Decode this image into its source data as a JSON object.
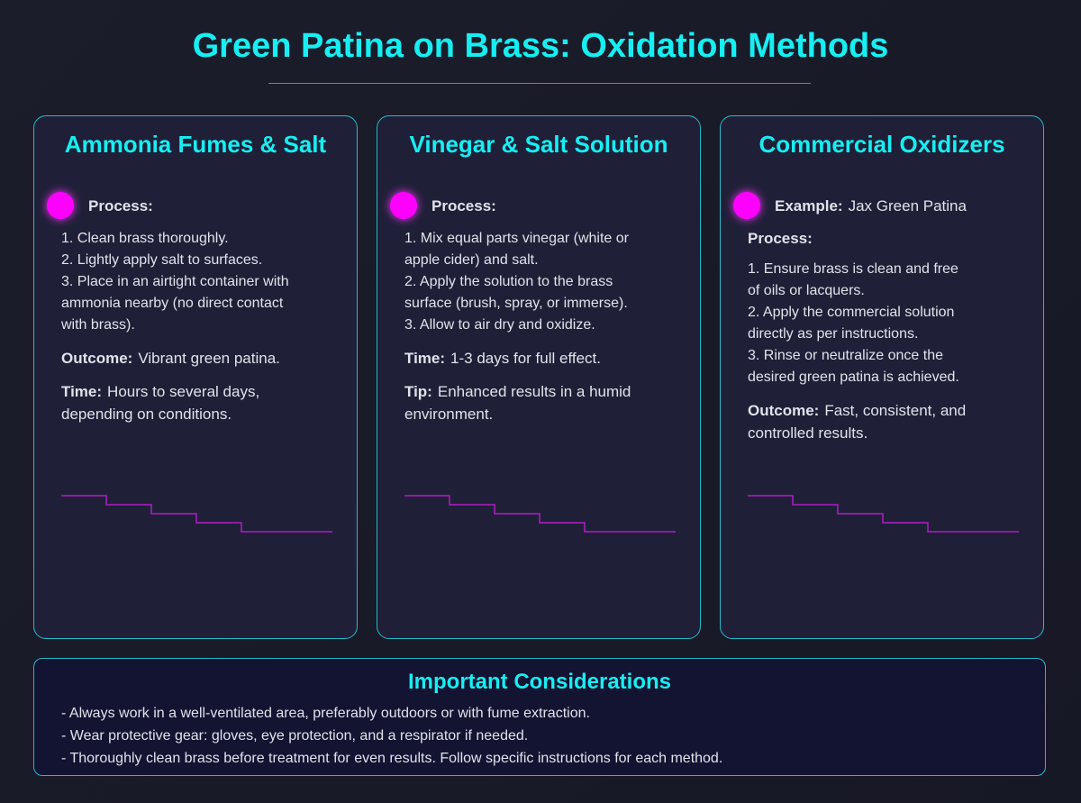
{
  "header": {
    "title": "Green Patina on Brass: Oxidation Methods"
  },
  "methods": [
    {
      "title": "Ammonia Fumes & Salt",
      "process_label": "Process:",
      "steps": [
        "1. Clean brass thoroughly.",
        "2. Lightly apply salt to surfaces.",
        "3. Place in an airtight container with ammonia nearby (no direct contact with brass)."
      ],
      "fields": [
        {
          "label": "Outcome:",
          "text": "Vibrant green patina."
        },
        {
          "label": "Time:",
          "text": "Hours to several days, depending on conditions."
        }
      ]
    },
    {
      "title": "Vinegar & Salt Solution",
      "process_label": "Process:",
      "steps": [
        "1. Mix equal parts vinegar (white or apple cider) and salt.",
        "2. Apply the solution to the brass surface (brush, spray, or immerse).",
        "3. Allow to air dry and oxidize."
      ],
      "fields": [
        {
          "label": "Time:",
          "text": "1-3 days for full effect."
        },
        {
          "label": "Tip:",
          "text": "Enhanced results in a humid environment."
        }
      ]
    },
    {
      "title": "Commercial Oxidizers",
      "example_label": "Example:",
      "example": "Jax Green Patina",
      "process_label": "Process:",
      "steps": [
        "1. Ensure brass is clean and free of oils or lacquers.",
        "2. Apply the commercial solution directly as per instructions.",
        "3. Rinse or neutralize once the desired green patina is achieved."
      ],
      "fields": [
        {
          "label": "Outcome:",
          "text": "Fast, consistent, and controlled results."
        }
      ]
    }
  ],
  "considerations": {
    "title": "Important Considerations",
    "items": [
      "- Always work in a well-ventilated area, preferably outdoors or with fume extraction.",
      "- Wear protective gear: gloves, eye protection, and a respirator if needed.",
      "- Thoroughly clean brass before treatment for even results. Follow specific instructions for each method."
    ]
  }
}
